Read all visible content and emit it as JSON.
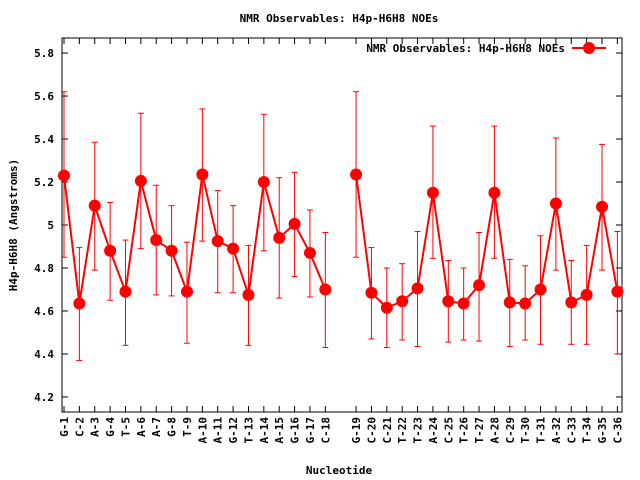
{
  "chart_data": {
    "type": "line",
    "title": "NMR Observables: H4p-H6H8 NOEs",
    "xlabel": "Nucleotide",
    "ylabel": "H4p-H6H8 (Angstroms)",
    "legend": {
      "label": "NMR Observables: H4p-H6H8 NOEs",
      "placement": "top-right"
    },
    "ylim": [
      4.13,
      5.87
    ],
    "xlim": [
      0.87,
      37.3
    ],
    "yticks": [
      4.2,
      4.4,
      4.6,
      4.8,
      5.0,
      5.2,
      5.4,
      5.6,
      5.8
    ],
    "ytick_labels": [
      "4.2",
      "4.4",
      "4.6",
      "4.8",
      "5",
      "5.2",
      "5.4",
      "5.6",
      "5.8"
    ],
    "grid": false,
    "color": "#ff0000",
    "points": [
      {
        "label": "G-1",
        "x": 1,
        "y": 5.23,
        "lo": 4.85,
        "hi": 5.62
      },
      {
        "label": "C-2",
        "x": 2,
        "y": 4.635,
        "lo": 4.37,
        "hi": 4.895
      },
      {
        "label": "A-3",
        "x": 3,
        "y": 5.09,
        "lo": 4.79,
        "hi": 5.385
      },
      {
        "label": "G-4",
        "x": 4,
        "y": 4.88,
        "lo": 4.65,
        "hi": 5.105
      },
      {
        "label": "T-5",
        "x": 5,
        "y": 4.69,
        "lo": 4.44,
        "hi": 4.93
      },
      {
        "label": "A-6",
        "x": 6,
        "y": 5.205,
        "lo": 4.89,
        "hi": 5.52
      },
      {
        "label": "A-7",
        "x": 7,
        "y": 4.93,
        "lo": 4.675,
        "hi": 5.185
      },
      {
        "label": "G-8",
        "x": 8,
        "y": 4.88,
        "lo": 4.67,
        "hi": 5.09
      },
      {
        "label": "T-9",
        "x": 9,
        "y": 4.69,
        "lo": 4.45,
        "hi": 4.92
      },
      {
        "label": "A-10",
        "x": 10,
        "y": 5.235,
        "lo": 4.925,
        "hi": 5.54
      },
      {
        "label": "A-11",
        "x": 11,
        "y": 4.925,
        "lo": 4.685,
        "hi": 5.16
      },
      {
        "label": "G-12",
        "x": 12,
        "y": 4.89,
        "lo": 4.685,
        "hi": 5.09
      },
      {
        "label": "T-13",
        "x": 13,
        "y": 4.675,
        "lo": 4.44,
        "hi": 4.905
      },
      {
        "label": "A-14",
        "x": 14,
        "y": 5.2,
        "lo": 4.88,
        "hi": 5.515
      },
      {
        "label": "A-15",
        "x": 15,
        "y": 4.94,
        "lo": 4.66,
        "hi": 5.22
      },
      {
        "label": "G-16",
        "x": 16,
        "y": 5.005,
        "lo": 4.76,
        "hi": 5.245
      },
      {
        "label": "G-17",
        "x": 17,
        "y": 4.87,
        "lo": 4.665,
        "hi": 5.07
      },
      {
        "label": "C-18",
        "x": 18,
        "y": 4.7,
        "lo": 4.43,
        "hi": 4.965
      },
      {
        "label": "G-19",
        "x": 20,
        "y": 5.235,
        "lo": 4.85,
        "hi": 5.62
      },
      {
        "label": "C-20",
        "x": 21,
        "y": 4.685,
        "lo": 4.47,
        "hi": 4.895
      },
      {
        "label": "C-21",
        "x": 22,
        "y": 4.615,
        "lo": 4.43,
        "hi": 4.8
      },
      {
        "label": "T-22",
        "x": 23,
        "y": 4.645,
        "lo": 4.465,
        "hi": 4.82
      },
      {
        "label": "T-23",
        "x": 24,
        "y": 4.705,
        "lo": 4.435,
        "hi": 4.97
      },
      {
        "label": "A-24",
        "x": 25,
        "y": 5.15,
        "lo": 4.845,
        "hi": 5.46
      },
      {
        "label": "C-25",
        "x": 26,
        "y": 4.645,
        "lo": 4.455,
        "hi": 4.835
      },
      {
        "label": "T-26",
        "x": 27,
        "y": 4.635,
        "lo": 4.465,
        "hi": 4.8
      },
      {
        "label": "T-27",
        "x": 28,
        "y": 4.72,
        "lo": 4.46,
        "hi": 4.965
      },
      {
        "label": "A-28",
        "x": 29,
        "y": 5.15,
        "lo": 4.845,
        "hi": 5.46
      },
      {
        "label": "C-29",
        "x": 30,
        "y": 4.64,
        "lo": 4.435,
        "hi": 4.84
      },
      {
        "label": "T-30",
        "x": 31,
        "y": 4.635,
        "lo": 4.465,
        "hi": 4.81
      },
      {
        "label": "T-31",
        "x": 32,
        "y": 4.7,
        "lo": 4.445,
        "hi": 4.95
      },
      {
        "label": "A-32",
        "x": 33,
        "y": 5.1,
        "lo": 4.79,
        "hi": 5.405
      },
      {
        "label": "C-33",
        "x": 34,
        "y": 4.64,
        "lo": 4.445,
        "hi": 4.835
      },
      {
        "label": "T-34",
        "x": 35,
        "y": 4.675,
        "lo": 4.445,
        "hi": 4.905
      },
      {
        "label": "G-35",
        "x": 36,
        "y": 5.085,
        "lo": 4.79,
        "hi": 5.375
      },
      {
        "label": "C-36",
        "x": 37,
        "y": 4.69,
        "lo": 4.4,
        "hi": 4.97
      }
    ]
  }
}
